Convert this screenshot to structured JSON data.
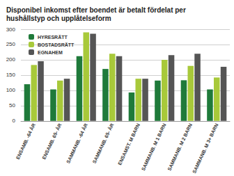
{
  "chart_data": {
    "type": "bar",
    "title": "Disponibel inkomst efter boendet är betalt fördelat per hushållstyp och upplåtelseform",
    "categories": [
      "ENSAMB. -64 ÅR",
      "ENSAMB. 65- ÅR",
      "SAMMANB. -64 ÅR",
      "SAMMANB. 65- ÅR",
      "ENSAMST. M BARN",
      "SAMMANB. M 1 BARN",
      "SAMMANB. M 2 BARN",
      "SAMMANB. M 3+ BARN"
    ],
    "series": [
      {
        "name": "HYRESRÄTT",
        "color": "#1f7a3a",
        "values": [
          120,
          103,
          212,
          170,
          93,
          132,
          133,
          103
        ]
      },
      {
        "name": "BOSTADSRÄTT",
        "color": "#a8c93a",
        "values": [
          183,
          132,
          290,
          220,
          138,
          200,
          180,
          142
        ]
      },
      {
        "name": "EGNAHEM",
        "color": "#555555",
        "values": [
          195,
          138,
          285,
          212,
          138,
          215,
          220,
          177
        ]
      }
    ],
    "ylim": [
      0,
      300
    ],
    "yticks": [
      0,
      50,
      100,
      150,
      200,
      250,
      300
    ],
    "grid": true,
    "legend": "upper left"
  }
}
